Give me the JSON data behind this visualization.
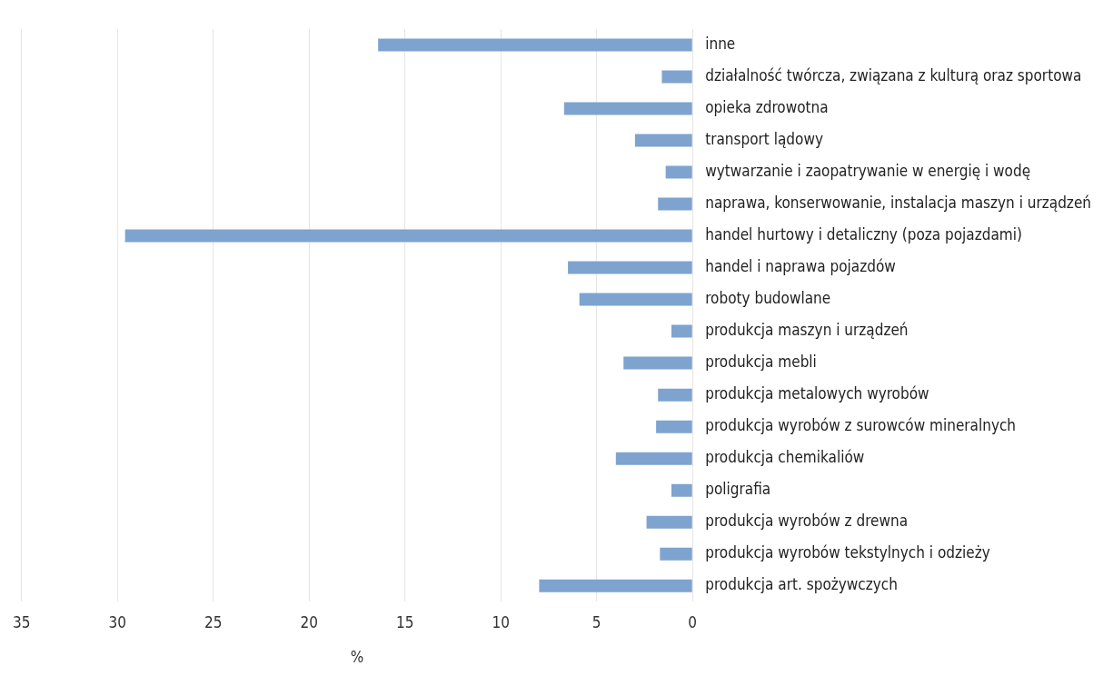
{
  "chart_data": {
    "type": "bar",
    "orientation": "horizontal",
    "xlabel": "%",
    "categories": [
      "inne",
      "działalność twórcza, związana z kulturą oraz sportowa",
      "opieka zdrowotna",
      "transport lądowy",
      "wytwarzanie i zaopatrywanie w energię i wodę",
      "naprawa, konserwowanie, instalacja maszyn i urządzeń",
      "handel hurtowy i detaliczny (poza pojazdami)",
      "handel i naprawa pojazdów",
      "roboty budowlane",
      "produkcja maszyn i urządzeń",
      "produkcja mebli",
      "produkcja metalowych wyrobów",
      "produkcja wyrobów z surowców mineralnych",
      "produkcja chemikaliów",
      "poligrafia",
      "produkcja wyrobów z drewna",
      "produkcja wyrobów tekstylnych i odzieży",
      "produkcja art. spożywczych"
    ],
    "values": [
      16.4,
      1.6,
      6.7,
      3.0,
      1.4,
      1.8,
      29.6,
      6.5,
      5.9,
      1.1,
      3.6,
      1.8,
      1.9,
      4.0,
      1.1,
      2.4,
      1.7,
      8.0
    ],
    "color": "#7ea3cf",
    "xlim": [
      35,
      0
    ],
    "xticks": [
      35,
      30,
      25,
      20,
      15,
      10,
      5,
      0
    ],
    "grid": "x",
    "legend": false
  }
}
